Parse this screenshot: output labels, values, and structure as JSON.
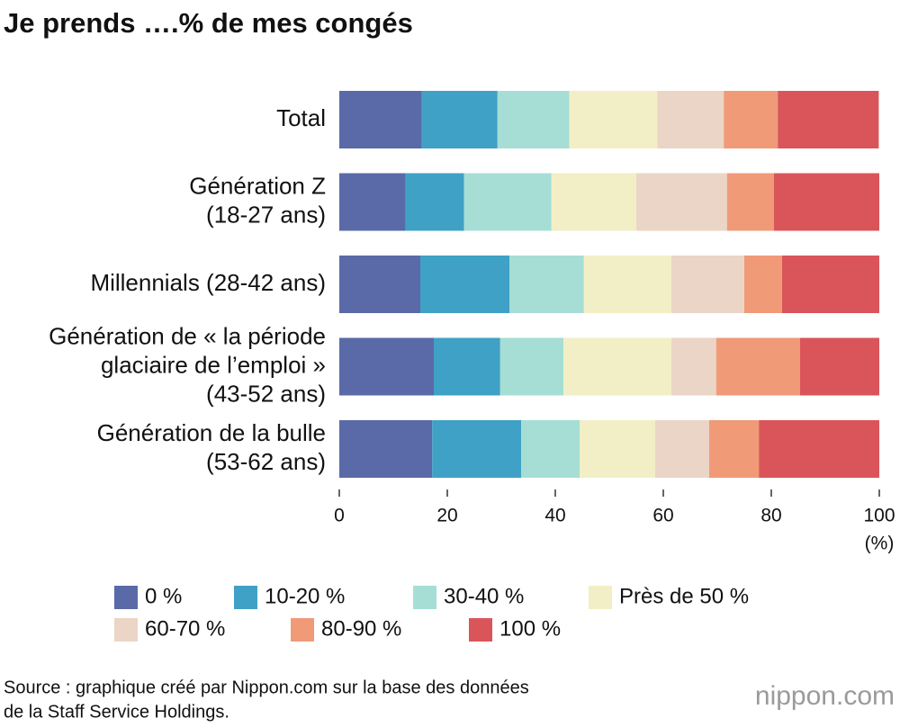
{
  "chart_data": {
    "type": "stacked-barh",
    "title": "Je prends ….% de mes congés",
    "categories": [
      [
        "Total"
      ],
      [
        "Génération Z",
        "(18-27 ans)"
      ],
      [
        "Millennials (28-42 ans)"
      ],
      [
        "Génération de « la période",
        "glaciaire de l’emploi »",
        "(43-52 ans)"
      ],
      [
        "Génération de la bulle",
        "(53-62 ans)"
      ]
    ],
    "series": [
      {
        "name": "0 %",
        "color": "#5a6aa8",
        "values": [
          15.3,
          12.3,
          15.0,
          17.5,
          17.2
        ]
      },
      {
        "name": "10-20 %",
        "color": "#3fa1c5",
        "values": [
          14.0,
          10.8,
          16.5,
          12.3,
          16.5
        ]
      },
      {
        "name": "30-40 %",
        "color": "#a6ded6",
        "values": [
          13.3,
          16.2,
          13.8,
          11.7,
          10.8
        ]
      },
      {
        "name": "Près de 50 %",
        "color": "#f2efc6",
        "values": [
          16.3,
          15.7,
          16.2,
          20.0,
          14.0
        ]
      },
      {
        "name": "60-70 %",
        "color": "#ebd5c6",
        "values": [
          12.3,
          16.8,
          13.5,
          8.3,
          10.0
        ]
      },
      {
        "name": "80-90 %",
        "color": "#f09a78",
        "values": [
          10.0,
          8.7,
          7.0,
          15.5,
          9.2
        ]
      },
      {
        "name": "100 %",
        "color": "#d9555a",
        "values": [
          18.7,
          19.5,
          18.0,
          14.7,
          22.3
        ]
      }
    ],
    "xlim": [
      0,
      100
    ],
    "xticks": [
      0,
      20,
      40,
      60,
      80,
      100
    ],
    "x_unit": "(%)",
    "source": [
      "Source : graphique créé par Nippon.com sur la base des données",
      "de la Staff Service Holdings."
    ],
    "logo": "nippon.com"
  }
}
